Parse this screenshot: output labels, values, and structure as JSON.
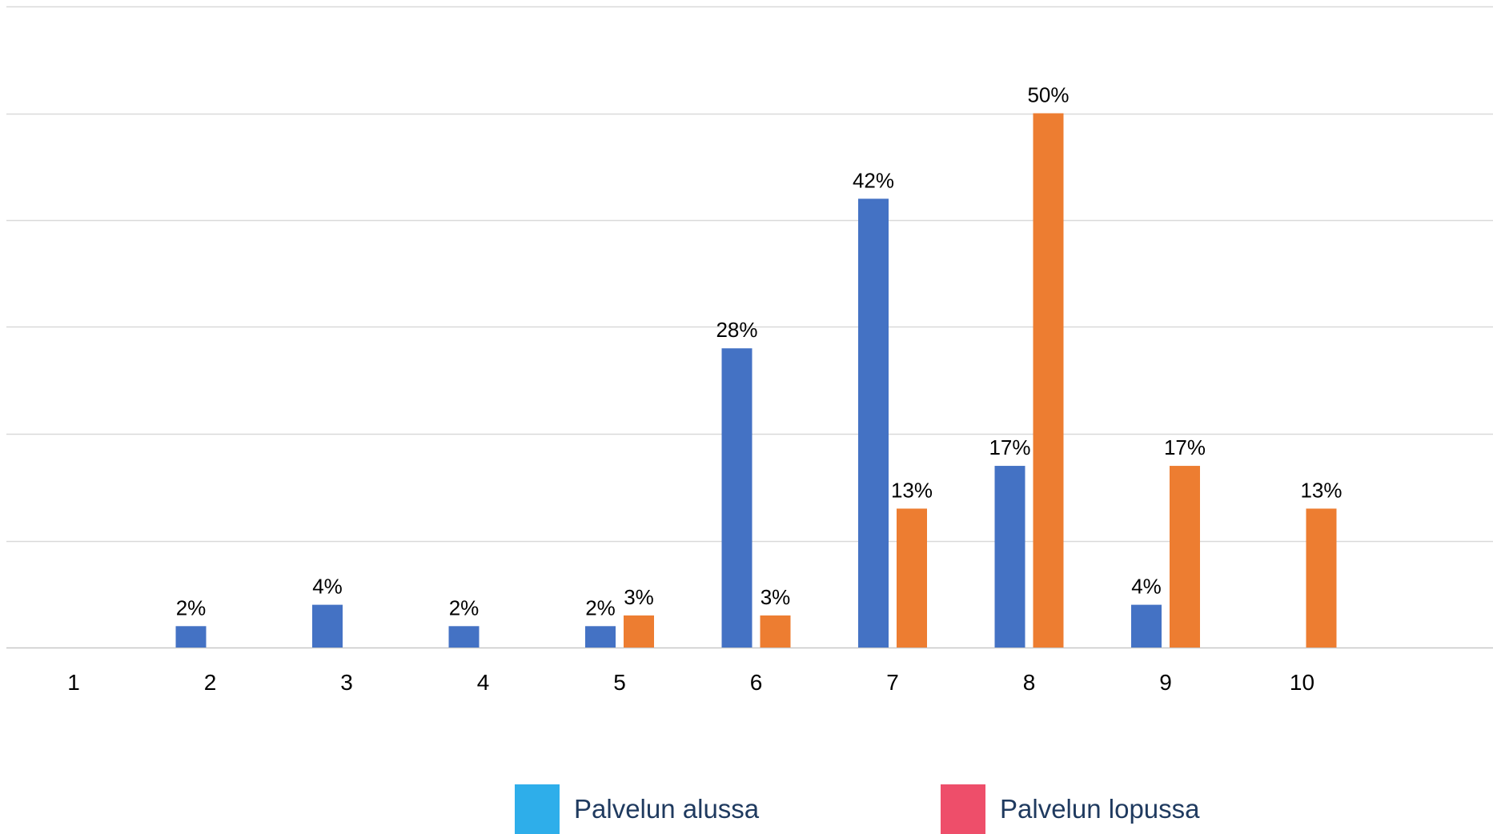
{
  "chart_data": {
    "type": "bar",
    "title": "",
    "xlabel": "",
    "ylabel": "",
    "categories": [
      "1",
      "2",
      "3",
      "4",
      "5",
      "6",
      "7",
      "8",
      "9",
      "10"
    ],
    "ylim": [
      0,
      0.6
    ],
    "grid": true,
    "legend_position": "bottom",
    "series": [
      {
        "name": "Palvelun alussa",
        "legend_color": "#2EAEEA",
        "bar_color": "#4472C4",
        "values": [
          null,
          0.02,
          0.04,
          0.02,
          0.02,
          0.28,
          0.42,
          0.17,
          0.04,
          null
        ],
        "labels": [
          null,
          "2%",
          "4%",
          "2%",
          "2%",
          "28%",
          "42%",
          "17%",
          "4%",
          null
        ]
      },
      {
        "name": "Palvelun lopussa",
        "legend_color": "#EE4E6A",
        "bar_color": "#ED7D31",
        "values": [
          null,
          null,
          null,
          null,
          0.03,
          0.03,
          0.13,
          0.5,
          0.17,
          0.13
        ],
        "labels": [
          null,
          null,
          null,
          null,
          "3%",
          "3%",
          "13%",
          "50%",
          "17%",
          "13%"
        ]
      }
    ]
  },
  "legend": {
    "item_1": "Palvelun alussa",
    "item_2": "Palvelun lopussa"
  }
}
